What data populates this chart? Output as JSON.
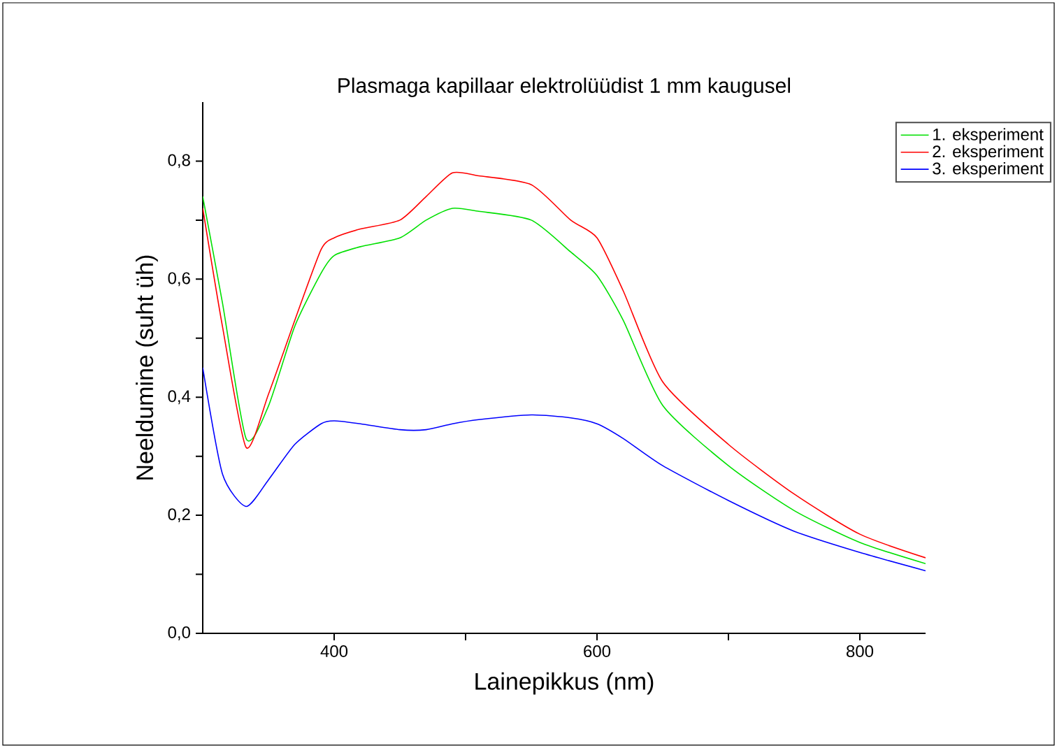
{
  "chart_data": {
    "type": "line",
    "title": "Plasmaga kapillaar elektrolüüdist 1 mm kaugusel",
    "xlabel": "Lainepikkus (nm)",
    "ylabel": "Neeldumine (suht üh)",
    "x": [
      300,
      315,
      333,
      350,
      370,
      390,
      400,
      420,
      450,
      470,
      490,
      510,
      550,
      580,
      600,
      620,
      650,
      700,
      750,
      800,
      850
    ],
    "series": [
      {
        "name": "1. eksperiment",
        "color": "#00e000",
        "values": [
          0.74,
          0.56,
          0.33,
          0.385,
          0.52,
          0.61,
          0.64,
          0.655,
          0.67,
          0.7,
          0.72,
          0.715,
          0.7,
          0.646,
          0.606,
          0.53,
          0.386,
          0.284,
          0.208,
          0.154,
          0.118
        ]
      },
      {
        "name": "2. eksperiment",
        "color": "#ff0000",
        "values": [
          0.72,
          0.52,
          0.315,
          0.405,
          0.53,
          0.65,
          0.67,
          0.685,
          0.7,
          0.74,
          0.78,
          0.775,
          0.76,
          0.7,
          0.67,
          0.58,
          0.426,
          0.32,
          0.236,
          0.168,
          0.128
        ]
      },
      {
        "name": "3. eksperiment",
        "color": "#0000ff",
        "values": [
          0.45,
          0.27,
          0.215,
          0.26,
          0.32,
          0.355,
          0.36,
          0.355,
          0.345,
          0.345,
          0.355,
          0.362,
          0.37,
          0.365,
          0.355,
          0.33,
          0.284,
          0.225,
          0.173,
          0.137,
          0.106
        ]
      }
    ],
    "xlim": [
      300,
      850
    ],
    "ylim": [
      0,
      0.9
    ],
    "xticks": [
      400,
      {
        "value": 500,
        "label": null
      },
      600,
      {
        "value": 700,
        "label": null
      },
      800
    ],
    "yticks": [
      {
        "value": 0,
        "label": "0,0"
      },
      {
        "value": 0.1,
        "label": null
      },
      {
        "value": 0.2,
        "label": "0,2"
      },
      {
        "value": 0.3,
        "label": null
      },
      {
        "value": 0.4,
        "label": "0,4"
      },
      {
        "value": 0.5,
        "label": null
      },
      {
        "value": 0.6,
        "label": "0,6"
      },
      {
        "value": 0.7,
        "label": null
      },
      {
        "value": 0.8,
        "label": "0,8"
      }
    ],
    "legend": "top right",
    "grid": false,
    "marker": "none",
    "line_style": "solid"
  }
}
